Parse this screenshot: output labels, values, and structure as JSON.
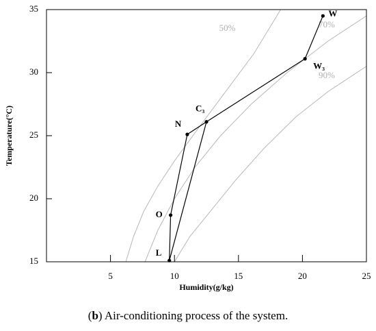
{
  "chart_data": {
    "type": "line",
    "x_label": "Humidity(g/kg)",
    "y_label": "Temperature(°C)",
    "xlim": [
      0,
      25
    ],
    "ylim": [
      15,
      35
    ],
    "xticks": [
      5,
      10,
      15,
      20,
      25
    ],
    "yticks": [
      15,
      20,
      25,
      30,
      35
    ],
    "curves": [
      {
        "name": "50%",
        "color": "#b8b8b8",
        "x": [
          6.2,
          6.8,
          7.6,
          8.7,
          10,
          11.8,
          14,
          16.2,
          18.3
        ],
        "y": [
          15,
          17,
          19,
          21,
          23,
          25.5,
          28.5,
          31.5,
          35
        ]
      },
      {
        "name": "70%",
        "color": "#b8b8b8",
        "x": [
          7.7,
          8.7,
          10,
          11.6,
          13.6,
          16,
          18.8,
          22,
          25
        ],
        "y": [
          15,
          17.5,
          20,
          22.5,
          25,
          27.5,
          30,
          32.5,
          34.5
        ]
      },
      {
        "name": "90%",
        "color": "#b8b8b8",
        "x": [
          10,
          11.2,
          12.8,
          14.8,
          17,
          19.5,
          22,
          25
        ],
        "y": [
          15,
          17,
          19,
          21.5,
          24,
          26.5,
          28.5,
          30.5
        ]
      }
    ],
    "process": {
      "color": "#000000",
      "labels": [
        "W",
        "W₃",
        "C₃",
        "N",
        "O",
        "L"
      ],
      "x": [
        21.6,
        20.2,
        12.5,
        11.0,
        9.7,
        9.6
      ],
      "y": [
        34.5,
        31.1,
        26.1,
        25.1,
        18.7,
        15.1
      ]
    },
    "caption": [
      "(",
      "b",
      ") Air-conditioning process of the system."
    ]
  }
}
